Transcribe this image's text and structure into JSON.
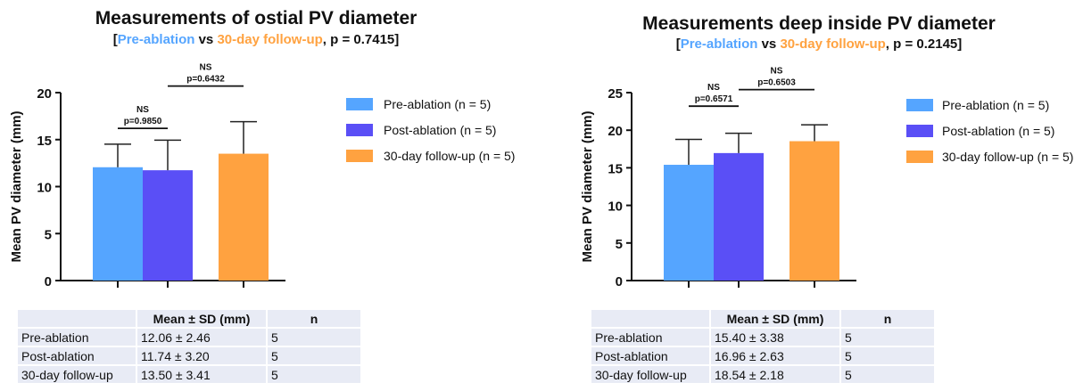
{
  "chart_data": [
    {
      "type": "bar",
      "title": "Measurements of ostial PV diameter",
      "subtitle": {
        "open": "[",
        "pre": "Pre-ablation",
        "vs": " vs ",
        "follow": "30-day follow-up",
        "p": ", p = 0.7415",
        "close": "]"
      },
      "ylabel": "Mean PV diameter (mm)",
      "ylim": [
        0,
        20
      ],
      "yticks": [
        "0",
        "5",
        "10",
        "15",
        "20"
      ],
      "categories": [
        "Pre-ablation",
        "Post-ablation",
        "30-day follow-up"
      ],
      "values": [
        12.06,
        11.74,
        13.5
      ],
      "errors": [
        2.46,
        3.2,
        3.41
      ],
      "colors": [
        "#55a5ff",
        "#5a4ff6",
        "#ffa240"
      ],
      "legend": [
        "Pre-ablation (n = 5)",
        "Post-ablation (n = 5)",
        "30-day follow-up (n = 5)"
      ],
      "legend_position": "right",
      "annotations": [
        {
          "from": 0,
          "to": 1,
          "label": "NS",
          "p": "p=0.9850",
          "y": 16.2
        },
        {
          "from": 1,
          "to": 2,
          "label": "NS",
          "p": "p=0.6432",
          "y": 20.7
        }
      ],
      "table": {
        "headers": [
          "",
          "Mean ± SD (mm)",
          "n"
        ],
        "rows": [
          [
            "Pre-ablation",
            "12.06 ± 2.46",
            "5"
          ],
          [
            "Post-ablation",
            "11.74 ± 3.20",
            "5"
          ],
          [
            "30-day follow-up",
            "13.50 ± 3.41",
            "5"
          ]
        ]
      }
    },
    {
      "type": "bar",
      "title": "Measurements deep inside PV diameter",
      "subtitle": {
        "open": "[",
        "pre": "Pre-ablation",
        "vs": " vs ",
        "follow": "30-day follow-up",
        "p": ", p = 0.2145",
        "close": "]"
      },
      "ylabel": "Mean PV diameter (mm)",
      "ylim": [
        0,
        25
      ],
      "yticks": [
        "0",
        "5",
        "10",
        "15",
        "20",
        "25"
      ],
      "categories": [
        "Pre-ablation",
        "Post-ablation",
        "30-day follow-up"
      ],
      "values": [
        15.4,
        16.96,
        18.54
      ],
      "errors": [
        3.38,
        2.63,
        2.18
      ],
      "colors": [
        "#55a5ff",
        "#5a4ff6",
        "#ffa240"
      ],
      "legend": [
        "Pre-ablation (n = 5)",
        "Post-ablation (n = 5)",
        "30-day follow-up (n = 5)"
      ],
      "legend_position": "right",
      "annotations": [
        {
          "from": 0,
          "to": 1,
          "label": "NS",
          "p": "p=0.6571",
          "y": 23.2
        },
        {
          "from": 1,
          "to": 2,
          "label": "NS",
          "p": "p=0.6503",
          "y": 25.4
        }
      ],
      "table": {
        "headers": [
          "",
          "Mean ± SD (mm)",
          "n"
        ],
        "rows": [
          [
            "Pre-ablation",
            "15.40 ± 3.38",
            "5"
          ],
          [
            "Post-ablation",
            "16.96 ± 2.63",
            "5"
          ],
          [
            "30-day follow-up",
            "18.54 ± 2.18",
            "5"
          ]
        ]
      }
    }
  ]
}
